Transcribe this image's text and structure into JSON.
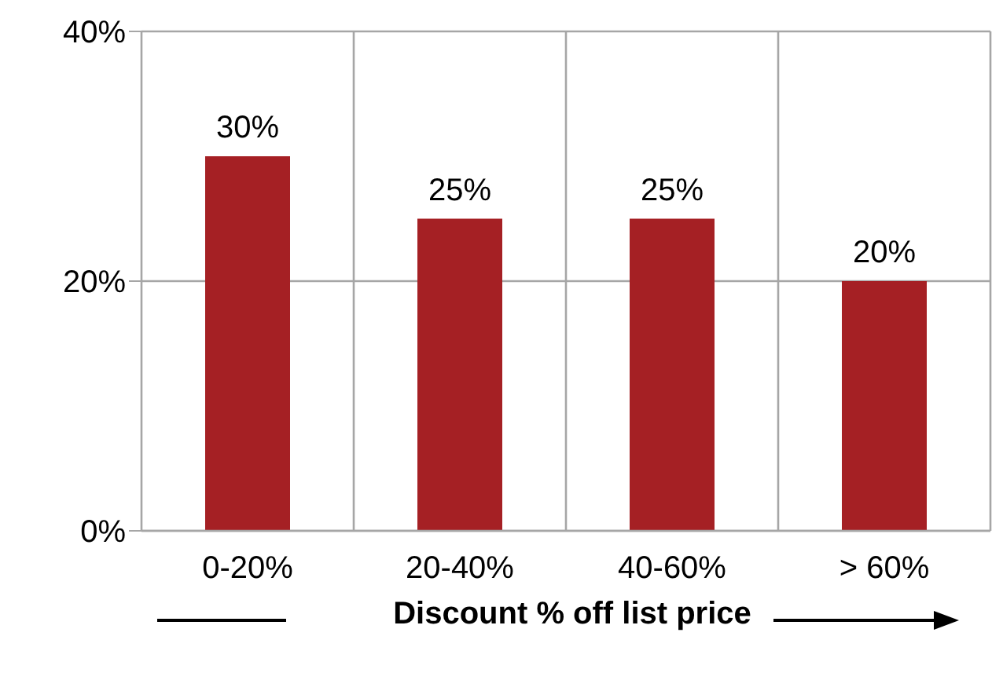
{
  "chart_data": {
    "type": "bar",
    "xlabel": "Discount % off list price",
    "categories": [
      "0-20%",
      "20-40%",
      "40-60%",
      "> 60%"
    ],
    "values": [
      30,
      25,
      25,
      20
    ],
    "value_labels": [
      "30%",
      "25%",
      "25%",
      "20%"
    ],
    "color": "#a52024",
    "ylim": [
      0,
      40
    ],
    "yticks": [
      {
        "value": 0,
        "label": "0%"
      },
      {
        "value": 20,
        "label": "20%"
      },
      {
        "value": 40,
        "label": "40%"
      }
    ],
    "grid": true
  }
}
